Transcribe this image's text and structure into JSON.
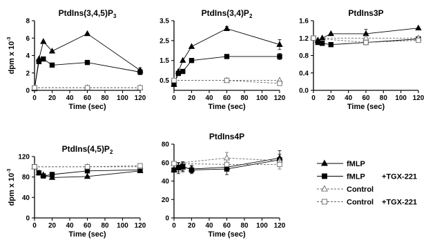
{
  "chart_data": [
    {
      "type": "line",
      "title": "PtdIns(3,4,5)P",
      "title_sub": "3",
      "ylabel": "dpm x 10",
      "ylabel_sup": "-3",
      "xlabel": "Time  (sec)",
      "xlim": [
        0,
        120
      ],
      "ylim": [
        0,
        8
      ],
      "yticks": [
        0,
        2,
        4,
        6,
        8
      ],
      "xticks": [
        0,
        20,
        40,
        60,
        80,
        100,
        120
      ],
      "series": [
        {
          "x": [
            0,
            5,
            10,
            20,
            60,
            120
          ],
          "y": [
            0.2,
            3.6,
            5.6,
            4.5,
            6.5,
            2.3
          ],
          "err": [
            0,
            0,
            0,
            0,
            0,
            0.3
          ]
        },
        {
          "x": [
            0,
            5,
            10,
            20,
            60,
            120
          ],
          "y": [
            0.2,
            3.3,
            3.6,
            2.9,
            3.2,
            2.1
          ],
          "err": [
            0,
            0,
            0,
            0,
            0,
            0.3
          ]
        },
        {
          "x": [
            0,
            60,
            120
          ],
          "y": [
            0.3,
            0.3,
            0.3
          ],
          "err": [
            0,
            0,
            0
          ]
        },
        {
          "x": [
            0,
            60,
            120
          ],
          "y": [
            0.3,
            0.3,
            0.3
          ],
          "err": [
            0,
            0,
            0
          ]
        }
      ]
    },
    {
      "type": "line",
      "title": "PtdIns(3,4)P",
      "title_sub": "2",
      "ylabel": "",
      "ylabel_sup": "",
      "xlabel": "Time  (sec)",
      "xlim": [
        0,
        120
      ],
      "ylim": [
        0,
        3.5
      ],
      "yticks": [
        0.5,
        1.5,
        2.5,
        3.5
      ],
      "xticks": [
        0,
        20,
        40,
        60,
        80,
        100,
        120
      ],
      "series": [
        {
          "x": [
            0,
            5,
            10,
            20,
            60,
            120
          ],
          "y": [
            0.3,
            0.95,
            1.5,
            2.2,
            3.1,
            2.3
          ],
          "err": [
            0,
            0,
            0,
            0,
            0.1,
            0.25
          ]
        },
        {
          "x": [
            0,
            5,
            10,
            20,
            60,
            120
          ],
          "y": [
            0.3,
            0.85,
            0.95,
            1.5,
            1.7,
            1.7
          ],
          "err": [
            0,
            0,
            0,
            0,
            0,
            0.15
          ]
        },
        {
          "x": [
            0,
            60,
            120
          ],
          "y": [
            0.5,
            0.5,
            0.5
          ],
          "err": [
            0,
            0,
            0
          ]
        },
        {
          "x": [
            0,
            60,
            120
          ],
          "y": [
            0.5,
            0.5,
            0.35
          ],
          "err": [
            0,
            0,
            0
          ]
        }
      ]
    },
    {
      "type": "line",
      "title": "PtdIns3P",
      "title_sub": "",
      "ylabel": "",
      "ylabel_sup": "",
      "xlabel": "Time  (sec)",
      "xlim": [
        0,
        120
      ],
      "ylim": [
        0,
        1.6
      ],
      "yticks": [
        0,
        0.4,
        0.8,
        1.2,
        1.6
      ],
      "xticks": [
        0,
        20,
        40,
        60,
        80,
        100,
        120
      ],
      "series": [
        {
          "x": [
            0,
            5,
            10,
            20,
            60,
            120
          ],
          "y": [
            1.2,
            1.15,
            1.2,
            1.3,
            1.3,
            1.43
          ],
          "err": [
            0,
            0,
            0,
            0,
            0.1,
            0
          ]
        },
        {
          "x": [
            0,
            5,
            10,
            20,
            60,
            120
          ],
          "y": [
            1.2,
            1.1,
            1.08,
            1.05,
            1.1,
            1.18
          ],
          "err": [
            0,
            0,
            0,
            0,
            0,
            0
          ]
        },
        {
          "x": [
            0,
            60,
            120
          ],
          "y": [
            1.2,
            1.2,
            1.2
          ],
          "err": [
            0,
            0,
            0
          ]
        },
        {
          "x": [
            0,
            60,
            120
          ],
          "y": [
            1.2,
            1.1,
            1.15
          ],
          "err": [
            0,
            0,
            0
          ]
        }
      ]
    },
    {
      "type": "line",
      "title": "PtdIns(4,5)P",
      "title_sub": "2",
      "ylabel": "dpm x 10",
      "ylabel_sup": "-3",
      "xlabel": "Time  (sec)",
      "xlim": [
        0,
        120
      ],
      "ylim": [
        0,
        120
      ],
      "yticks": [
        0,
        40,
        80,
        120
      ],
      "xticks": [
        0,
        20,
        40,
        60,
        80,
        100,
        120
      ],
      "series": [
        {
          "x": [
            0,
            5,
            10,
            20,
            60,
            120
          ],
          "y": [
            100,
            88,
            84,
            79,
            81,
            92
          ],
          "err": [
            0,
            0,
            0,
            0,
            0,
            0
          ]
        },
        {
          "x": [
            0,
            5,
            10,
            20,
            60,
            120
          ],
          "y": [
            100,
            88,
            82,
            85,
            92,
            94
          ],
          "err": [
            0,
            0,
            0,
            0,
            0,
            0
          ]
        },
        {
          "x": [
            0,
            60,
            120
          ],
          "y": [
            100,
            100,
            100
          ],
          "err": [
            0,
            0,
            0
          ]
        },
        {
          "x": [
            0,
            60,
            120
          ],
          "y": [
            100,
            100,
            102
          ],
          "err": [
            0,
            0,
            0
          ]
        }
      ]
    },
    {
      "type": "line",
      "title": "PtdIns4P",
      "title_sub": "",
      "ylabel": "",
      "ylabel_sup": "",
      "xlabel": "Time  (sec)",
      "xlim": [
        0,
        120
      ],
      "ylim": [
        0,
        80
      ],
      "yticks": [
        0,
        20,
        40,
        60,
        80
      ],
      "xticks": [
        0,
        20,
        40,
        60,
        80,
        100,
        120
      ],
      "series": [
        {
          "x": [
            0,
            5,
            10,
            20,
            60,
            120
          ],
          "y": [
            52,
            54,
            55,
            53,
            55,
            65
          ],
          "err": [
            0,
            6,
            5,
            4,
            0,
            8
          ]
        },
        {
          "x": [
            0,
            5,
            10,
            20,
            60,
            120
          ],
          "y": [
            52,
            55,
            56,
            52,
            53,
            63
          ],
          "err": [
            0,
            5,
            5,
            4,
            6,
            6
          ]
        },
        {
          "x": [
            0,
            60,
            120
          ],
          "y": [
            59,
            65,
            62
          ],
          "err": [
            0,
            6,
            0
          ]
        },
        {
          "x": [
            0,
            60,
            120
          ],
          "y": [
            59,
            58,
            58
          ],
          "err": [
            0,
            0,
            5
          ]
        }
      ]
    }
  ],
  "legend": [
    {
      "marker": "triangle-filled",
      "dashed": false,
      "label": "fMLP",
      "suffix": ""
    },
    {
      "marker": "square-filled",
      "dashed": false,
      "label": "fMLP",
      "suffix": "+TGX-221"
    },
    {
      "marker": "triangle-open",
      "dashed": true,
      "label": "Control",
      "suffix": ""
    },
    {
      "marker": "square-open",
      "dashed": true,
      "label": "Control",
      "suffix": "+TGX-221"
    }
  ],
  "colors": {
    "ink": "#000000",
    "dashed": "#666666",
    "background": "#ffffff"
  }
}
